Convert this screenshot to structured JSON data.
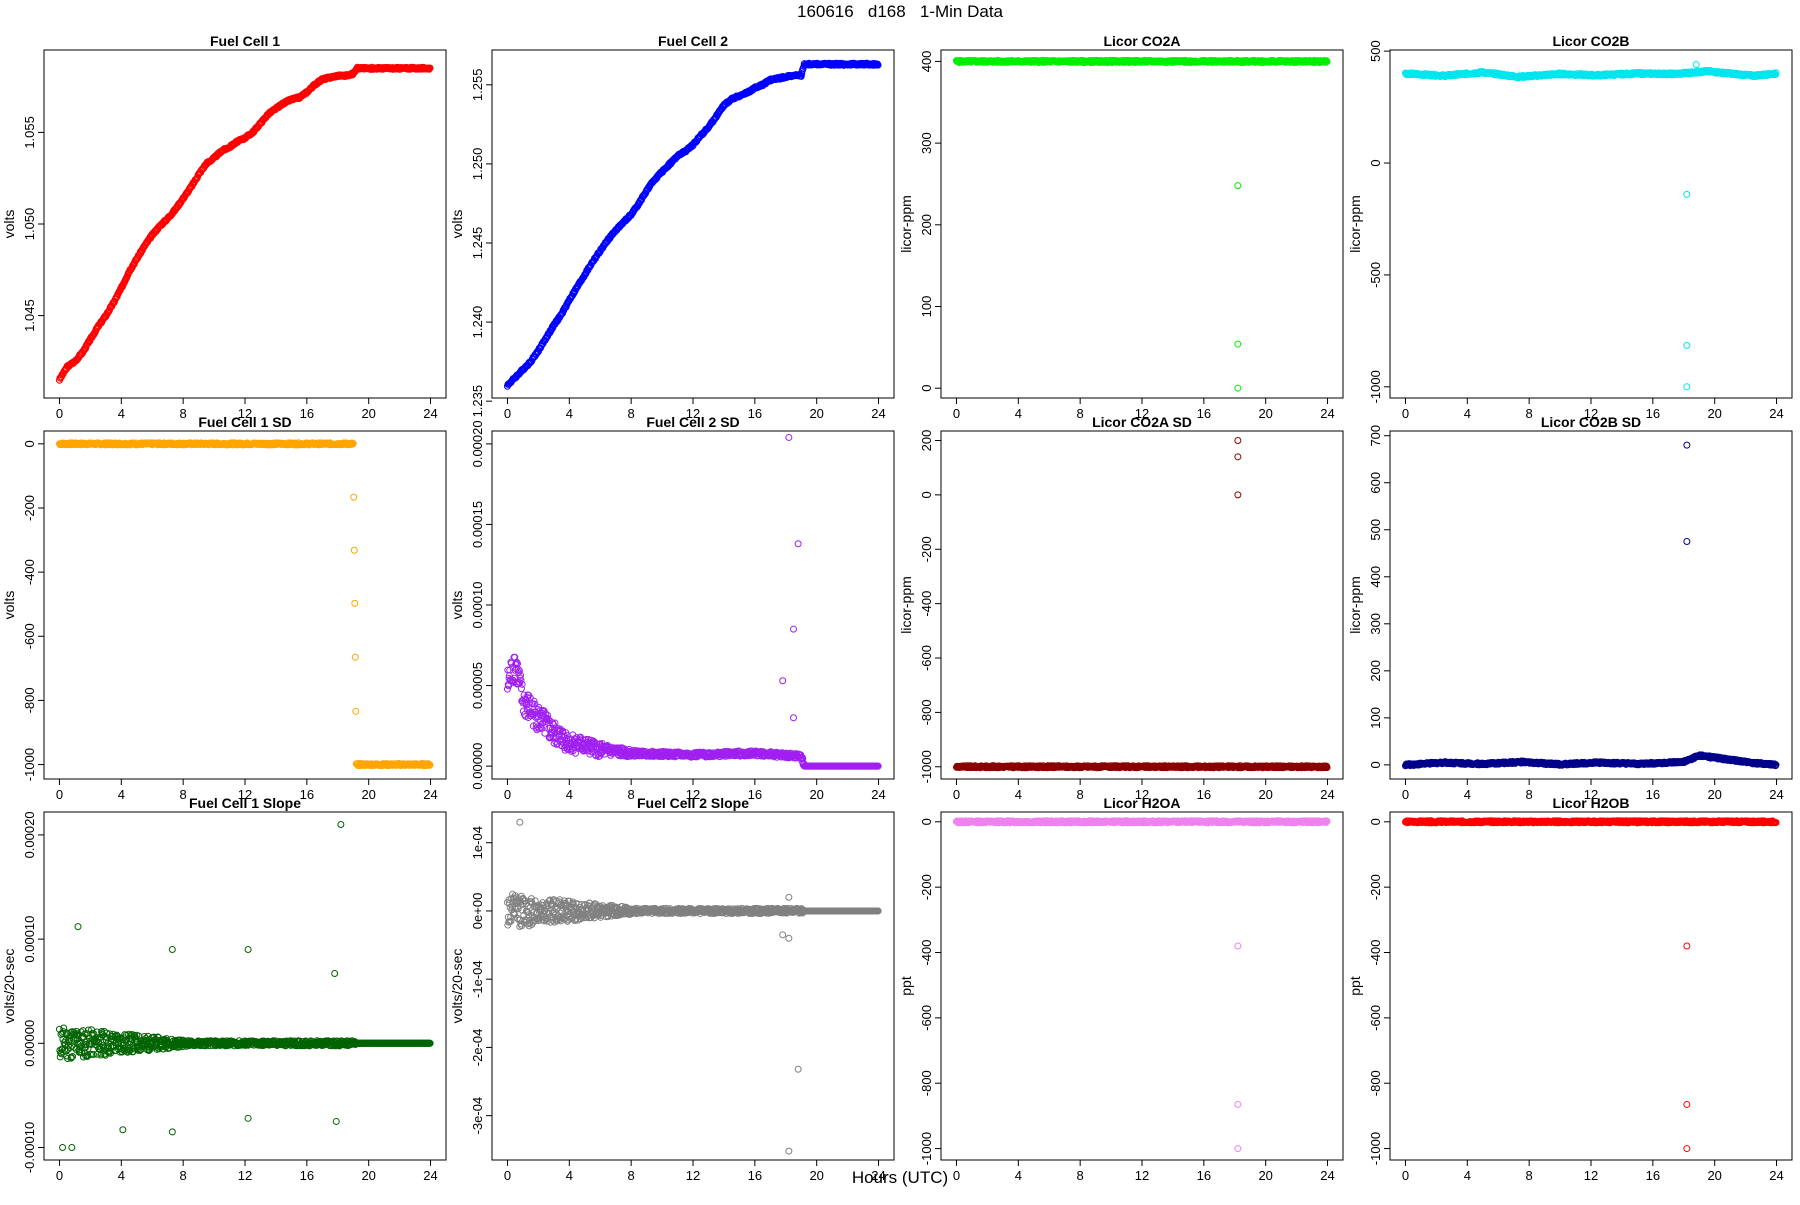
{
  "figure": {
    "title": "160616   d168   1-Min Data",
    "xlabel": "Hours (UTC)"
  },
  "chart_data": [
    {
      "type": "scatter",
      "title": "Fuel Cell 1",
      "ylabel": "volts",
      "xlim": [
        -1,
        25
      ],
      "ylim": [
        1.0405,
        1.0595
      ],
      "xticks": [
        0,
        4,
        8,
        12,
        16,
        20,
        24
      ],
      "yticks": [
        1.045,
        1.05,
        1.055
      ],
      "ytick_labels": [
        "1.045",
        "1.050",
        "1.055"
      ],
      "color": "#ff0000",
      "marker": "circle",
      "density": "dense",
      "points": [
        [
          0,
          1.0415
        ],
        [
          0.5,
          1.0422
        ],
        [
          1,
          1.0425
        ],
        [
          1.5,
          1.043
        ],
        [
          2,
          1.0437
        ],
        [
          2.5,
          1.0444
        ],
        [
          3,
          1.045
        ],
        [
          3.5,
          1.0457
        ],
        [
          4,
          1.0465
        ],
        [
          4.5,
          1.0474
        ],
        [
          5,
          1.0481
        ],
        [
          5.5,
          1.0488
        ],
        [
          6,
          1.0494
        ],
        [
          6.5,
          1.0499
        ],
        [
          7,
          1.0503
        ],
        [
          7.5,
          1.0508
        ],
        [
          8,
          1.0514
        ],
        [
          8.5,
          1.052
        ],
        [
          9,
          1.0527
        ],
        [
          9.5,
          1.0533
        ],
        [
          10,
          1.0536
        ],
        [
          10.5,
          1.054
        ],
        [
          11,
          1.0542
        ],
        [
          11.5,
          1.0545
        ],
        [
          12,
          1.0547
        ],
        [
          12.5,
          1.055
        ],
        [
          13,
          1.0555
        ],
        [
          13.5,
          1.056
        ],
        [
          14,
          1.0563
        ],
        [
          14.5,
          1.0566
        ],
        [
          15,
          1.0568
        ],
        [
          15.5,
          1.0569
        ],
        [
          16,
          1.0572
        ],
        [
          16.5,
          1.0576
        ],
        [
          17,
          1.0579
        ],
        [
          17.5,
          1.058
        ],
        [
          18,
          1.0581
        ],
        [
          18.5,
          1.0581
        ],
        [
          19,
          1.0582
        ],
        [
          19.2,
          1.0585
        ],
        [
          24,
          1.0585
        ]
      ]
    },
    {
      "type": "scatter",
      "title": "Fuel Cell 2",
      "ylabel": "volts",
      "xlim": [
        -1,
        25
      ],
      "ylim": [
        1.2352,
        1.2572
      ],
      "xticks": [
        0,
        4,
        8,
        12,
        16,
        20,
        24
      ],
      "yticks": [
        1.235,
        1.24,
        1.245,
        1.25,
        1.255
      ],
      "ytick_labels": [
        "1.235",
        "1.240",
        "1.245",
        "1.250",
        "1.255"
      ],
      "color": "#0000ff",
      "marker": "circle",
      "density": "dense",
      "points": [
        [
          0,
          1.236
        ],
        [
          0.5,
          1.2365
        ],
        [
          1,
          1.237
        ],
        [
          1.5,
          1.2375
        ],
        [
          2,
          1.2382
        ],
        [
          2.5,
          1.239
        ],
        [
          3,
          1.2398
        ],
        [
          3.5,
          1.2405
        ],
        [
          4,
          1.2414
        ],
        [
          4.5,
          1.2422
        ],
        [
          5,
          1.243
        ],
        [
          5.5,
          1.2438
        ],
        [
          6,
          1.2445
        ],
        [
          6.5,
          1.2452
        ],
        [
          7,
          1.2458
        ],
        [
          7.5,
          1.2463
        ],
        [
          8,
          1.2468
        ],
        [
          8.5,
          1.2475
        ],
        [
          9,
          1.2483
        ],
        [
          9.5,
          1.249
        ],
        [
          10,
          1.2495
        ],
        [
          10.5,
          1.25
        ],
        [
          11,
          1.2505
        ],
        [
          11.5,
          1.2508
        ],
        [
          12,
          1.2512
        ],
        [
          12.5,
          1.2518
        ],
        [
          13,
          1.2523
        ],
        [
          13.5,
          1.253
        ],
        [
          14,
          1.2537
        ],
        [
          14.5,
          1.2541
        ],
        [
          15,
          1.2543
        ],
        [
          15.5,
          1.2545
        ],
        [
          16,
          1.2548
        ],
        [
          16.5,
          1.255
        ],
        [
          17,
          1.2553
        ],
        [
          17.5,
          1.2554
        ],
        [
          18,
          1.2555
        ],
        [
          18.5,
          1.2556
        ],
        [
          19,
          1.2556
        ],
        [
          19.2,
          1.2563
        ],
        [
          24,
          1.2563
        ]
      ]
    },
    {
      "type": "scatter",
      "title": "Licor CO2A",
      "ylabel": "licor-ppm",
      "xlim": [
        -1,
        25
      ],
      "ylim": [
        -12,
        414
      ],
      "xticks": [
        0,
        4,
        8,
        12,
        16,
        20,
        24
      ],
      "yticks": [
        0,
        100,
        200,
        300,
        400
      ],
      "ytick_labels": [
        "0",
        "100",
        "200",
        "300",
        "400"
      ],
      "color": "#00ee00",
      "marker": "circle",
      "density": "dense",
      "points": [
        [
          0,
          400
        ],
        [
          6,
          400
        ],
        [
          12,
          400
        ],
        [
          18,
          400
        ],
        [
          19.2,
          400
        ],
        [
          24,
          400
        ]
      ],
      "outliers": [
        [
          18.2,
          248
        ],
        [
          18.2,
          54
        ],
        [
          18.2,
          0
        ]
      ]
    },
    {
      "type": "scatter",
      "title": "Licor CO2B",
      "ylabel": "licor-ppm",
      "xlim": [
        -1,
        25
      ],
      "ylim": [
        -1050,
        505
      ],
      "xticks": [
        0,
        4,
        8,
        12,
        16,
        20,
        24
      ],
      "yticks": [
        -1000,
        -500,
        0,
        500
      ],
      "ytick_labels": [
        "-1000",
        "-500",
        "0",
        "500"
      ],
      "color": "#00e5ee",
      "marker": "circle",
      "density": "dense",
      "points": [
        [
          0,
          400
        ],
        [
          2.5,
          390
        ],
        [
          5,
          405
        ],
        [
          7.3,
          385
        ],
        [
          10,
          398
        ],
        [
          12.3,
          392
        ],
        [
          15,
          400
        ],
        [
          17.5,
          398
        ],
        [
          19.5,
          410
        ],
        [
          22.5,
          390
        ],
        [
          24,
          400
        ]
      ],
      "outliers": [
        [
          18.8,
          440
        ],
        [
          18.2,
          -140
        ],
        [
          18.2,
          -815
        ],
        [
          18.2,
          -1000
        ]
      ]
    },
    {
      "type": "scatter",
      "title": "Fuel Cell 1 SD",
      "ylabel": "volts",
      "xlim": [
        -1,
        25
      ],
      "ylim": [
        -1045,
        40
      ],
      "xticks": [
        0,
        4,
        8,
        12,
        16,
        20,
        24
      ],
      "yticks": [
        -1000,
        -800,
        -600,
        -400,
        -200,
        0
      ],
      "ytick_labels": [
        "-1000",
        "-800",
        "-600",
        "-400",
        "-200",
        "0"
      ],
      "color": "#ffa500",
      "marker": "circle",
      "density": "dense",
      "points": [
        [
          0,
          0
        ],
        [
          9,
          0
        ],
        [
          19,
          0
        ],
        [
          19.2,
          -1000
        ],
        [
          24,
          -1000
        ]
      ]
    },
    {
      "type": "scatter",
      "title": "Fuel Cell 2 SD",
      "ylabel": "volts",
      "xlim": [
        -1,
        25
      ],
      "ylim": [
        -8e-06,
        0.000208
      ],
      "xticks": [
        0,
        4,
        8,
        12,
        16,
        20,
        24
      ],
      "yticks": [
        0,
        5e-05,
        0.0001,
        0.00015,
        0.0002
      ],
      "ytick_labels": [
        "0.00000",
        "0.00005",
        "0.00010",
        "0.00015",
        "0.00020"
      ],
      "color": "#a020f0",
      "marker": "circle",
      "density": "scatter",
      "points": [
        [
          0,
          5e-05
        ],
        [
          0.5,
          6.5e-05
        ],
        [
          1,
          4e-05
        ],
        [
          2,
          3e-05
        ],
        [
          3,
          2e-05
        ],
        [
          4,
          1.5e-05
        ],
        [
          6,
          1e-05
        ],
        [
          8,
          8e-06
        ],
        [
          12,
          7e-06
        ],
        [
          16,
          8e-06
        ],
        [
          19,
          6e-06
        ],
        [
          19.2,
          0
        ],
        [
          24,
          0
        ]
      ],
      "outliers": [
        [
          18.2,
          0.000204
        ],
        [
          18.8,
          0.000138
        ],
        [
          18.5,
          8.5e-05
        ],
        [
          17.8,
          5.3e-05
        ],
        [
          18.5,
          3e-05
        ]
      ]
    },
    {
      "type": "scatter",
      "title": "Licor CO2A SD",
      "ylabel": "licor-ppm",
      "xlim": [
        -1,
        25
      ],
      "ylim": [
        -1045,
        235
      ],
      "xticks": [
        0,
        4,
        8,
        12,
        16,
        20,
        24
      ],
      "yticks": [
        -1000,
        -800,
        -600,
        -400,
        -200,
        0,
        200
      ],
      "ytick_labels": [
        "-1000",
        "-800",
        "-600",
        "-400",
        "-200",
        "0",
        "200"
      ],
      "color": "#8b0000",
      "marker": "circle",
      "density": "dense",
      "points": [
        [
          0,
          -1000
        ],
        [
          12,
          -1000
        ],
        [
          24,
          -1000
        ]
      ],
      "outliers": [
        [
          18.2,
          200
        ],
        [
          18.2,
          140
        ],
        [
          18.2,
          0
        ]
      ]
    },
    {
      "type": "scatter",
      "title": "Licor CO2B SD",
      "ylabel": "licor-ppm",
      "xlim": [
        -1,
        25
      ],
      "ylim": [
        -30,
        710
      ],
      "xticks": [
        0,
        4,
        8,
        12,
        16,
        20,
        24
      ],
      "yticks": [
        0,
        100,
        200,
        300,
        400,
        500,
        600,
        700
      ],
      "ytick_labels": [
        "0",
        "100",
        "200",
        "300",
        "400",
        "500",
        "600",
        "700"
      ],
      "color": "#00008b",
      "marker": "circle",
      "density": "dense",
      "points": [
        [
          0,
          0
        ],
        [
          2.5,
          5
        ],
        [
          5,
          2
        ],
        [
          7.5,
          6
        ],
        [
          10,
          1
        ],
        [
          12.3,
          5
        ],
        [
          15,
          2
        ],
        [
          18,
          6
        ],
        [
          19,
          20
        ],
        [
          22.5,
          4
        ],
        [
          24,
          0
        ]
      ],
      "outliers": [
        [
          18.2,
          680
        ],
        [
          18.2,
          475
        ]
      ]
    },
    {
      "type": "scatter",
      "title": "Fuel Cell 1 Slope",
      "ylabel": "volts/20-sec",
      "xlim": [
        -1,
        25
      ],
      "ylim": [
        -0.000112,
        0.000222
      ],
      "xticks": [
        0,
        4,
        8,
        12,
        16,
        20,
        24
      ],
      "yticks": [
        -0.0001,
        0,
        0.0001,
        0.0002
      ],
      "ytick_labels": [
        "-0.00010",
        "0.00000",
        "0.00010",
        "0.00020"
      ],
      "color": "#006400",
      "marker": "circle",
      "density": "scatter",
      "points": [
        [
          0,
          0
        ],
        [
          2,
          0
        ],
        [
          4,
          0
        ],
        [
          6,
          0
        ],
        [
          8,
          0
        ],
        [
          10,
          0
        ],
        [
          12,
          0
        ],
        [
          14,
          0
        ],
        [
          16,
          0
        ],
        [
          18,
          0
        ],
        [
          19.2,
          0
        ],
        [
          24,
          0
        ]
      ],
      "outliers": [
        [
          18.2,
          0.00021
        ],
        [
          1.2,
          0.000112
        ],
        [
          12.2,
          9e-05
        ],
        [
          7.3,
          9e-05
        ],
        [
          17.8,
          6.7e-05
        ],
        [
          0.2,
          -0.0001
        ],
        [
          0.8,
          -0.0001
        ],
        [
          4.1,
          -8.3e-05
        ],
        [
          7.3,
          -8.5e-05
        ],
        [
          12.2,
          -7.2e-05
        ],
        [
          17.9,
          -7.5e-05
        ]
      ]
    },
    {
      "type": "scatter",
      "title": "Fuel Cell 2 Slope",
      "ylabel": "volts/20-sec",
      "xlim": [
        -1,
        25
      ],
      "ylim": [
        -0.000365,
        0.000145
      ],
      "xticks": [
        0,
        4,
        8,
        12,
        16,
        20,
        24
      ],
      "yticks": [
        -0.0003,
        -0.0002,
        -0.0001,
        0,
        0.0001
      ],
      "ytick_labels": [
        "-3e-04",
        "-2e-04",
        "-1e-04",
        "0e+00",
        "1e-04"
      ],
      "color": "#808080",
      "marker": "circle",
      "density": "scatter",
      "points": [
        [
          0,
          0
        ],
        [
          2,
          0
        ],
        [
          4,
          0
        ],
        [
          6,
          0
        ],
        [
          8,
          0
        ],
        [
          10,
          0
        ],
        [
          12,
          0
        ],
        [
          14,
          0
        ],
        [
          16,
          0
        ],
        [
          18,
          0
        ],
        [
          19.2,
          0
        ],
        [
          24,
          0
        ]
      ],
      "outliers": [
        [
          0.8,
          0.00013
        ],
        [
          18.2,
          2e-05
        ],
        [
          17.8,
          -3.5e-05
        ],
        [
          18.2,
          -4e-05
        ],
        [
          18.8,
          -0.000232
        ],
        [
          18.2,
          -0.000352
        ]
      ]
    },
    {
      "type": "scatter",
      "title": "Licor H2OA",
      "ylabel": "ppt",
      "xlim": [
        -1,
        25
      ],
      "ylim": [
        -1035,
        30
      ],
      "xticks": [
        0,
        4,
        8,
        12,
        16,
        20,
        24
      ],
      "yticks": [
        -1000,
        -800,
        -600,
        -400,
        -200,
        0
      ],
      "ytick_labels": [
        "-1000",
        "-800",
        "-600",
        "-400",
        "-200",
        "0"
      ],
      "color": "#ee82ee",
      "marker": "circle",
      "density": "dense",
      "points": [
        [
          0,
          0
        ],
        [
          12,
          0
        ],
        [
          24,
          0
        ]
      ],
      "outliers": [
        [
          18.2,
          -380
        ],
        [
          18.2,
          -865
        ],
        [
          18.2,
          -1000
        ]
      ]
    },
    {
      "type": "scatter",
      "title": "Licor H2OB",
      "ylabel": "ppt",
      "xlim": [
        -1,
        25
      ],
      "ylim": [
        -1035,
        30
      ],
      "xticks": [
        0,
        4,
        8,
        12,
        16,
        20,
        24
      ],
      "yticks": [
        -1000,
        -800,
        -600,
        -400,
        -200,
        0
      ],
      "ytick_labels": [
        "-1000",
        "-800",
        "-600",
        "-400",
        "-200",
        "0"
      ],
      "color": "#ff0000",
      "marker": "circle",
      "density": "dense",
      "points": [
        [
          0,
          0
        ],
        [
          12,
          0
        ],
        [
          24,
          0
        ]
      ],
      "outliers": [
        [
          18.2,
          -380
        ],
        [
          18.2,
          -865
        ],
        [
          18.2,
          -1000
        ]
      ]
    }
  ]
}
